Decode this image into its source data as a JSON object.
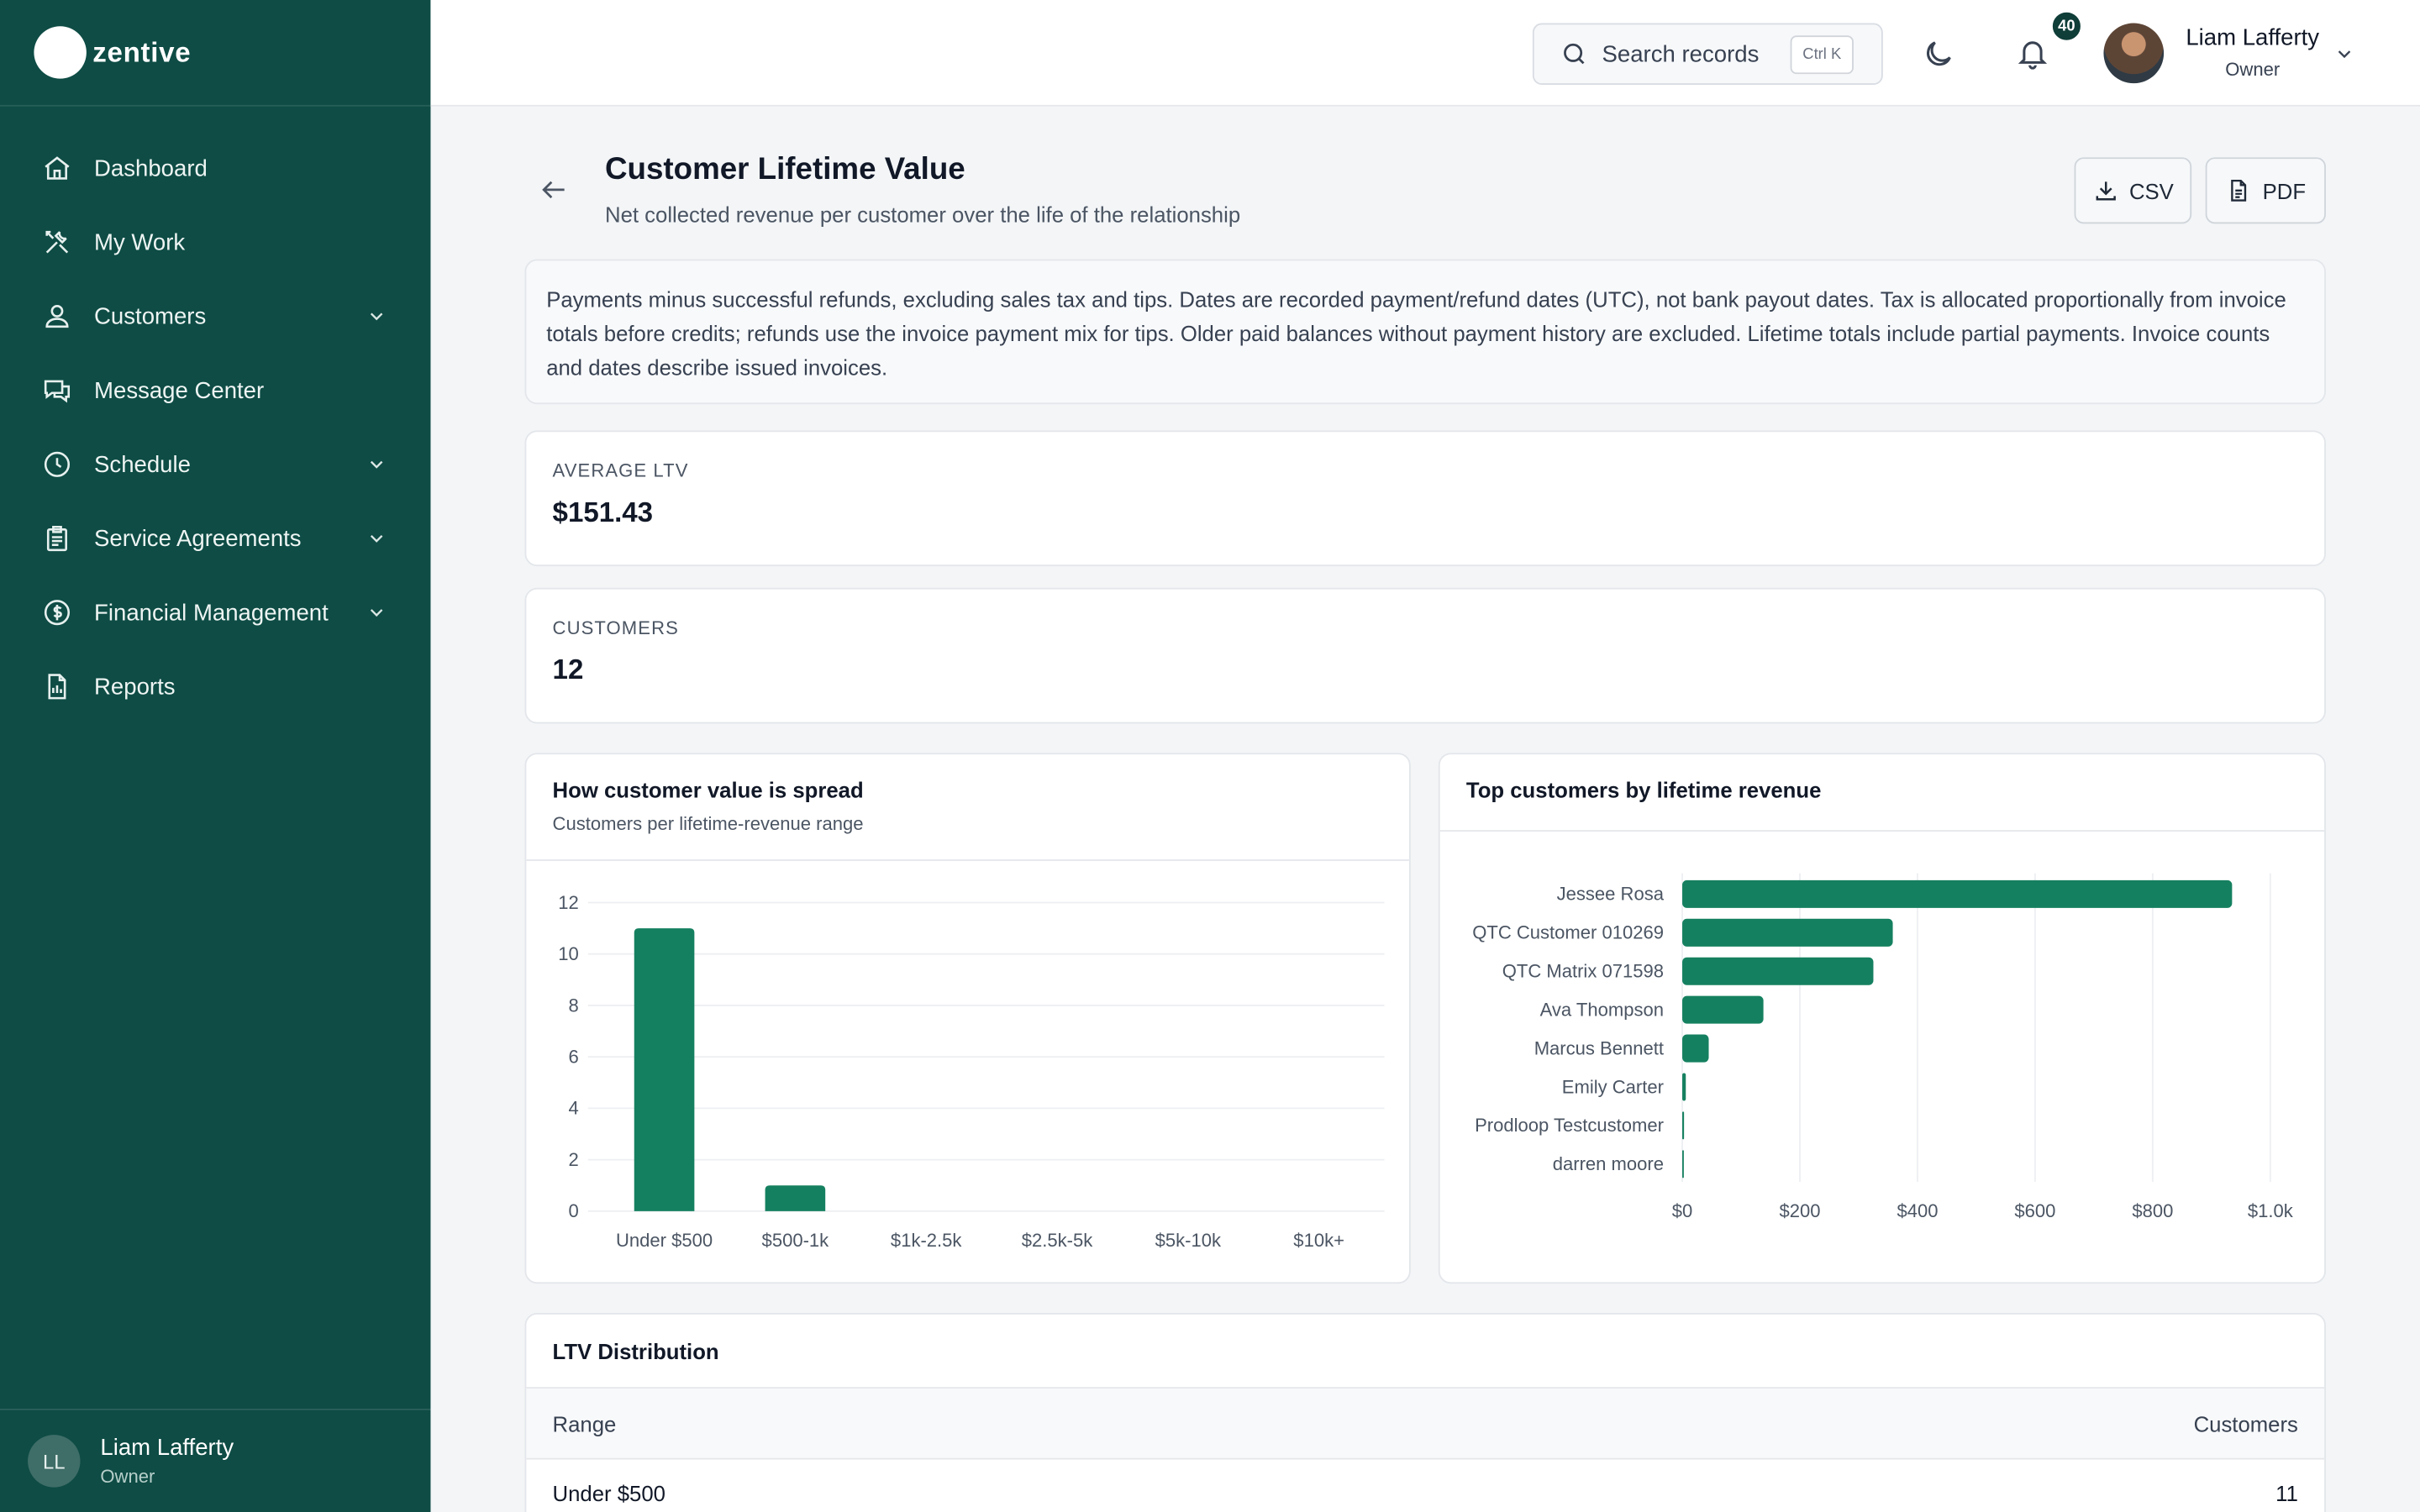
{
  "brand": {
    "name": "zentive"
  },
  "sidebar": {
    "items": [
      {
        "label": "Dashboard",
        "icon": "home-icon",
        "has_children": false
      },
      {
        "label": "My Work",
        "icon": "tools-icon",
        "has_children": false
      },
      {
        "label": "Customers",
        "icon": "users-icon",
        "has_children": true
      },
      {
        "label": "Message Center",
        "icon": "chat-icon",
        "has_children": false
      },
      {
        "label": "Schedule",
        "icon": "clock-icon",
        "has_children": true
      },
      {
        "label": "Service Agreements",
        "icon": "clipboard-icon",
        "has_children": true
      },
      {
        "label": "Financial Management",
        "icon": "dollar-icon",
        "has_children": true
      },
      {
        "label": "Reports",
        "icon": "document-icon",
        "has_children": false
      }
    ],
    "user": {
      "initials": "LL",
      "name": "Liam Lafferty",
      "role": "Owner"
    }
  },
  "topbar": {
    "search_placeholder": "Search records",
    "search_shortcut": "Ctrl K",
    "notification_count": "40",
    "user_name": "Liam Lafferty",
    "user_role": "Owner"
  },
  "page": {
    "title": "Customer Lifetime Value",
    "subtitle": "Net collected revenue per customer over the life of the relationship",
    "csv_label": "CSV",
    "pdf_label": "PDF",
    "note": "Payments minus successful refunds, excluding sales tax and tips. Dates are recorded payment/refund dates (UTC), not bank payout dates. Tax is allocated proportionally from invoice totals before credits; refunds use the invoice payment mix for tips. Older paid balances without payment history are excluded. Lifetime totals include partial payments. Invoice counts and dates describe issued invoices."
  },
  "stats": {
    "average_ltv_label": "AVERAGE LTV",
    "average_ltv_value": "$151.43",
    "customers_label": "CUSTOMERS",
    "customers_value": "12"
  },
  "spread_chart": {
    "title": "How customer value is spread",
    "subtitle": "Customers per lifetime-revenue range"
  },
  "top_chart": {
    "title": "Top customers by lifetime revenue"
  },
  "chart_data": [
    {
      "type": "bar",
      "title": "How customer value is spread",
      "subtitle": "Customers per lifetime-revenue range",
      "categories": [
        "Under $500",
        "$500-1k",
        "$1k-2.5k",
        "$2.5k-5k",
        "$5k-10k",
        "$10k+"
      ],
      "values": [
        11,
        1,
        0,
        0,
        0,
        0
      ],
      "ylim": [
        0,
        12
      ],
      "yticks": [
        0,
        2,
        4,
        6,
        8,
        10,
        12
      ],
      "grid": true,
      "color": "#15805f"
    },
    {
      "type": "bar",
      "orientation": "horizontal",
      "title": "Top customers by lifetime revenue",
      "categories": [
        "Jessee Rosa",
        "QTC Customer 010269",
        "QTC Matrix 071598",
        "Ava Thompson",
        "Marcus Bennett",
        "Emily Carter",
        "Prodloop Testcustomer",
        "darren moore"
      ],
      "values": [
        935,
        358,
        325,
        138,
        45,
        6,
        3,
        1
      ],
      "xlim": [
        0,
        1000
      ],
      "xticks": [
        "$0",
        "$200",
        "$400",
        "$600",
        "$800",
        "$1.0k"
      ],
      "grid": true,
      "color": "#15805f"
    }
  ],
  "table": {
    "title": "LTV Distribution",
    "col_range": "Range",
    "col_customers": "Customers",
    "rows": [
      {
        "range": "Under $500",
        "customers": "11"
      }
    ]
  }
}
